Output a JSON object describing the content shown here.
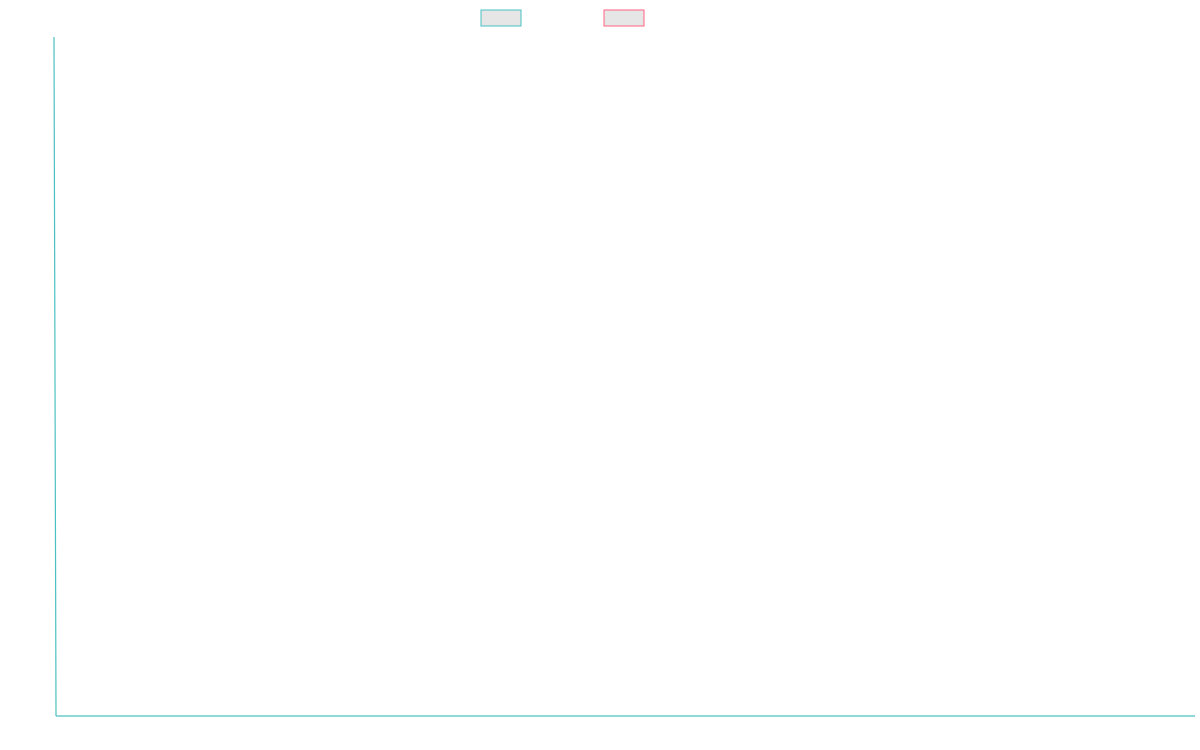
{
  "colors": {
    "background": "#ffffff",
    "axis": "#4bc0c0",
    "series_1_border": "#4bc0c0",
    "series_2_border": "#ff6384",
    "legend_fill": "#e6e6e6"
  },
  "chart_data": {
    "type": "line",
    "title": "",
    "xlabel": "",
    "ylabel": "",
    "categories": [],
    "series": [
      {
        "name": "",
        "values": [],
        "color": "#4bc0c0"
      },
      {
        "name": "",
        "values": [],
        "color": "#ff6384"
      }
    ],
    "grid": false,
    "legend_position": "top-center"
  }
}
